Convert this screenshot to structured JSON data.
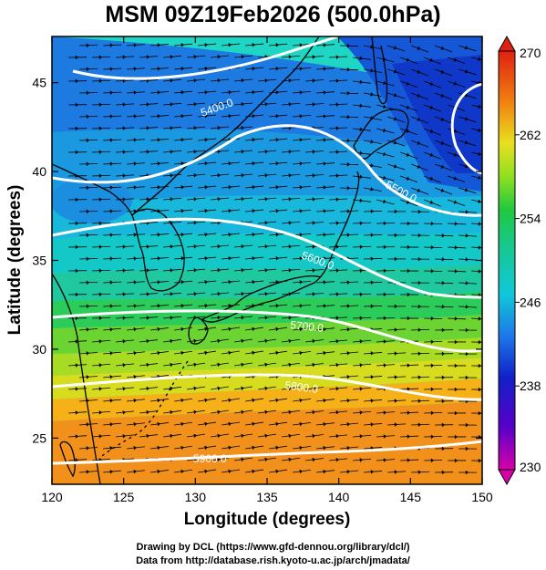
{
  "title": "MSM 09Z19Feb2026 (500.0hPa)",
  "axes": {
    "xlabel": "Longitude (degrees)",
    "ylabel": "Latitude  (degrees)",
    "xticks": [
      "120",
      "125",
      "130",
      "135",
      "140",
      "145",
      "150"
    ],
    "yticks": [
      "25",
      "30",
      "35",
      "40",
      "45"
    ],
    "xrange": [
      120,
      150
    ],
    "yrange": [
      22.4,
      47.6
    ]
  },
  "colorbar": {
    "ticks": [
      "230",
      "238",
      "246",
      "254",
      "262",
      "270"
    ],
    "range": [
      230,
      270
    ],
    "unit_hint": "temperature (K)"
  },
  "contours": [
    {
      "label": "5400.0",
      "value": 5400
    },
    {
      "label": "5500.0",
      "value": 5500
    },
    {
      "label": "5600.0",
      "value": 5600
    },
    {
      "label": "5700.0",
      "value": 5700
    },
    {
      "label": "5800.0",
      "value": 5800
    },
    {
      "label": "5900.0",
      "value": 5900
    }
  ],
  "credits": {
    "line1": "Drawing by DCL (https://www.gfd-dennou.org/library/dcl/)",
    "line2": "Data from http://database.rish.kyoto-u.ac.jp/arch/jmadata/"
  },
  "colors": {
    "contour": "#ffffff",
    "coast": "#000000",
    "streamline": "#000000"
  }
}
